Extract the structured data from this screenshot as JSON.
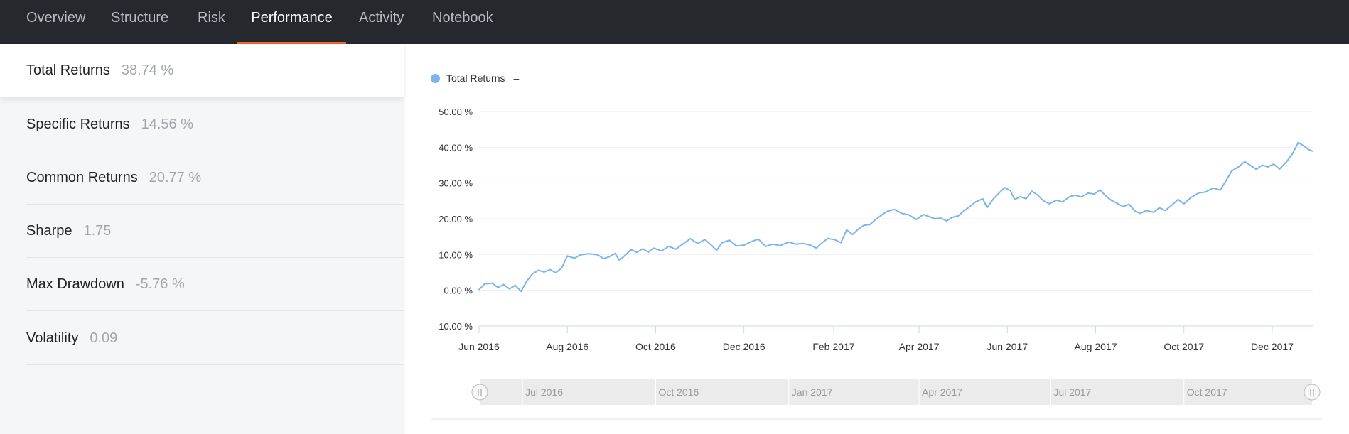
{
  "tabs": [
    {
      "label": "Overview"
    },
    {
      "label": "Structure"
    },
    {
      "label": "Risk"
    },
    {
      "label": "Performance",
      "active": true
    },
    {
      "label": "Activity"
    },
    {
      "label": "Notebook"
    }
  ],
  "metrics": [
    {
      "label": "Total Returns",
      "value": "38.74 %"
    },
    {
      "label": "Specific Returns",
      "value": "14.56 %"
    },
    {
      "label": "Common Returns",
      "value": "20.77 %"
    },
    {
      "label": "Sharpe",
      "value": "1.75"
    },
    {
      "label": "Max Drawdown",
      "value": "-5.76 %"
    },
    {
      "label": "Volatility",
      "value": "0.09"
    }
  ],
  "legend": {
    "label": "Total Returns",
    "suffix": "–",
    "color": "#7cb5ec"
  },
  "colors": {
    "nav_bg": "#25282c",
    "accent": "#f16531",
    "series": "#7cb5ec"
  },
  "chart_data": {
    "type": "line",
    "series": [
      {
        "name": "Total Returns",
        "points": [
          [
            "2016-06-01",
            0.2
          ],
          [
            "2016-06-05",
            1.8
          ],
          [
            "2016-06-10",
            2.0
          ],
          [
            "2016-06-14",
            0.8
          ],
          [
            "2016-06-18",
            1.6
          ],
          [
            "2016-06-22",
            0.4
          ],
          [
            "2016-06-26",
            1.4
          ],
          [
            "2016-06-30",
            -0.3
          ],
          [
            "2016-07-04",
            2.6
          ],
          [
            "2016-07-08",
            4.6
          ],
          [
            "2016-07-12",
            5.6
          ],
          [
            "2016-07-16",
            5.1
          ],
          [
            "2016-07-20",
            5.8
          ],
          [
            "2016-07-24",
            4.9
          ],
          [
            "2016-07-28",
            6.2
          ],
          [
            "2016-08-01",
            9.6
          ],
          [
            "2016-08-06",
            9.0
          ],
          [
            "2016-08-10",
            9.9
          ],
          [
            "2016-08-16",
            10.2
          ],
          [
            "2016-08-22",
            9.9
          ],
          [
            "2016-08-26",
            8.9
          ],
          [
            "2016-08-30",
            9.4
          ],
          [
            "2016-09-03",
            10.3
          ],
          [
            "2016-09-06",
            8.4
          ],
          [
            "2016-09-10",
            9.8
          ],
          [
            "2016-09-14",
            11.4
          ],
          [
            "2016-09-18",
            10.6
          ],
          [
            "2016-09-22",
            11.6
          ],
          [
            "2016-09-26",
            10.7
          ],
          [
            "2016-09-30",
            11.8
          ],
          [
            "2016-10-05",
            11.0
          ],
          [
            "2016-10-10",
            12.3
          ],
          [
            "2016-10-15",
            11.5
          ],
          [
            "2016-10-20",
            13.0
          ],
          [
            "2016-10-25",
            14.4
          ],
          [
            "2016-10-30",
            13.1
          ],
          [
            "2016-11-04",
            14.2
          ],
          [
            "2016-11-08",
            12.8
          ],
          [
            "2016-11-12",
            11.2
          ],
          [
            "2016-11-16",
            13.3
          ],
          [
            "2016-11-21",
            14.0
          ],
          [
            "2016-11-26",
            12.4
          ],
          [
            "2016-12-01",
            12.6
          ],
          [
            "2016-12-06",
            13.6
          ],
          [
            "2016-12-11",
            14.3
          ],
          [
            "2016-12-16",
            12.3
          ],
          [
            "2016-12-21",
            12.9
          ],
          [
            "2016-12-26",
            12.5
          ],
          [
            "2017-01-01",
            13.5
          ],
          [
            "2017-01-06",
            12.9
          ],
          [
            "2017-01-11",
            13.1
          ],
          [
            "2017-01-16",
            12.6
          ],
          [
            "2017-01-20",
            11.8
          ],
          [
            "2017-01-24",
            13.3
          ],
          [
            "2017-01-28",
            14.5
          ],
          [
            "2017-02-02",
            14.1
          ],
          [
            "2017-02-06",
            13.3
          ],
          [
            "2017-02-10",
            16.9
          ],
          [
            "2017-02-14",
            15.6
          ],
          [
            "2017-02-18",
            17.1
          ],
          [
            "2017-02-22",
            18.2
          ],
          [
            "2017-02-26",
            18.4
          ],
          [
            "2017-03-02",
            19.8
          ],
          [
            "2017-03-06",
            21.0
          ],
          [
            "2017-03-10",
            22.1
          ],
          [
            "2017-03-15",
            22.6
          ],
          [
            "2017-03-20",
            21.5
          ],
          [
            "2017-03-25",
            21.1
          ],
          [
            "2017-03-30",
            19.8
          ],
          [
            "2017-04-04",
            21.2
          ],
          [
            "2017-04-08",
            20.6
          ],
          [
            "2017-04-12",
            20.0
          ],
          [
            "2017-04-16",
            20.2
          ],
          [
            "2017-04-20",
            19.4
          ],
          [
            "2017-04-24",
            20.4
          ],
          [
            "2017-04-28",
            20.8
          ],
          [
            "2017-05-02",
            22.2
          ],
          [
            "2017-05-06",
            23.4
          ],
          [
            "2017-05-10",
            24.7
          ],
          [
            "2017-05-15",
            25.6
          ],
          [
            "2017-05-18",
            23.1
          ],
          [
            "2017-05-22",
            25.4
          ],
          [
            "2017-05-26",
            27.1
          ],
          [
            "2017-05-30",
            28.7
          ],
          [
            "2017-06-03",
            27.9
          ],
          [
            "2017-06-06",
            25.4
          ],
          [
            "2017-06-10",
            26.2
          ],
          [
            "2017-06-14",
            25.6
          ],
          [
            "2017-06-18",
            27.7
          ],
          [
            "2017-06-22",
            26.6
          ],
          [
            "2017-06-26",
            25.0
          ],
          [
            "2017-06-30",
            24.2
          ],
          [
            "2017-07-05",
            25.2
          ],
          [
            "2017-07-09",
            24.7
          ],
          [
            "2017-07-14",
            26.2
          ],
          [
            "2017-07-18",
            26.6
          ],
          [
            "2017-07-22",
            26.1
          ],
          [
            "2017-07-27",
            27.2
          ],
          [
            "2017-07-31",
            26.9
          ],
          [
            "2017-08-04",
            28.1
          ],
          [
            "2017-08-08",
            26.4
          ],
          [
            "2017-08-12",
            25.1
          ],
          [
            "2017-08-16",
            24.3
          ],
          [
            "2017-08-20",
            23.4
          ],
          [
            "2017-08-24",
            24.1
          ],
          [
            "2017-08-28",
            22.2
          ],
          [
            "2017-09-01",
            21.5
          ],
          [
            "2017-09-05",
            22.3
          ],
          [
            "2017-09-10",
            21.8
          ],
          [
            "2017-09-14",
            23.1
          ],
          [
            "2017-09-18",
            22.3
          ],
          [
            "2017-09-22",
            23.6
          ],
          [
            "2017-09-27",
            25.4
          ],
          [
            "2017-10-01",
            24.2
          ],
          [
            "2017-10-06",
            26.0
          ],
          [
            "2017-10-11",
            27.2
          ],
          [
            "2017-10-16",
            27.5
          ],
          [
            "2017-10-21",
            28.6
          ],
          [
            "2017-10-26",
            28.0
          ],
          [
            "2017-10-30",
            30.6
          ],
          [
            "2017-11-03",
            33.4
          ],
          [
            "2017-11-08",
            34.6
          ],
          [
            "2017-11-12",
            36.0
          ],
          [
            "2017-11-16",
            34.9
          ],
          [
            "2017-11-20",
            33.8
          ],
          [
            "2017-11-24",
            35.0
          ],
          [
            "2017-11-28",
            34.5
          ],
          [
            "2017-12-02",
            35.3
          ],
          [
            "2017-12-06",
            33.9
          ],
          [
            "2017-12-11",
            36.0
          ],
          [
            "2017-12-15",
            38.2
          ],
          [
            "2017-12-19",
            41.3
          ],
          [
            "2017-12-22",
            40.6
          ],
          [
            "2017-12-26",
            39.4
          ],
          [
            "2017-12-29",
            38.9
          ]
        ]
      }
    ],
    "xlabel": "",
    "ylabel": "",
    "xticks": [
      "Jun 2016",
      "Aug 2016",
      "Oct 2016",
      "Dec 2016",
      "Feb 2017",
      "Apr 2017",
      "Jun 2017",
      "Aug 2017",
      "Oct 2017",
      "Dec 2017"
    ],
    "xtick_dates": [
      "2016-06-01",
      "2016-08-01",
      "2016-10-01",
      "2016-12-01",
      "2017-02-01",
      "2017-04-01",
      "2017-06-01",
      "2017-08-01",
      "2017-10-01",
      "2017-12-01"
    ],
    "xlim": [
      "2016-06-01",
      "2017-12-29"
    ],
    "yticks": [
      "-10.00 %",
      "0.00 %",
      "10.00 %",
      "20.00 %",
      "30.00 %",
      "40.00 %",
      "50.00 %"
    ],
    "ylim": [
      -10,
      50
    ],
    "grid": "horizontal",
    "legend_position": "top-left",
    "navigator": {
      "labels": [
        "Jul 2016",
        "Oct 2016",
        "Jan 2017",
        "Apr 2017",
        "Jul 2017",
        "Oct 2017"
      ],
      "label_dates": [
        "2016-07-01",
        "2016-10-01",
        "2017-01-01",
        "2017-04-01",
        "2017-07-01",
        "2017-10-01"
      ]
    }
  }
}
